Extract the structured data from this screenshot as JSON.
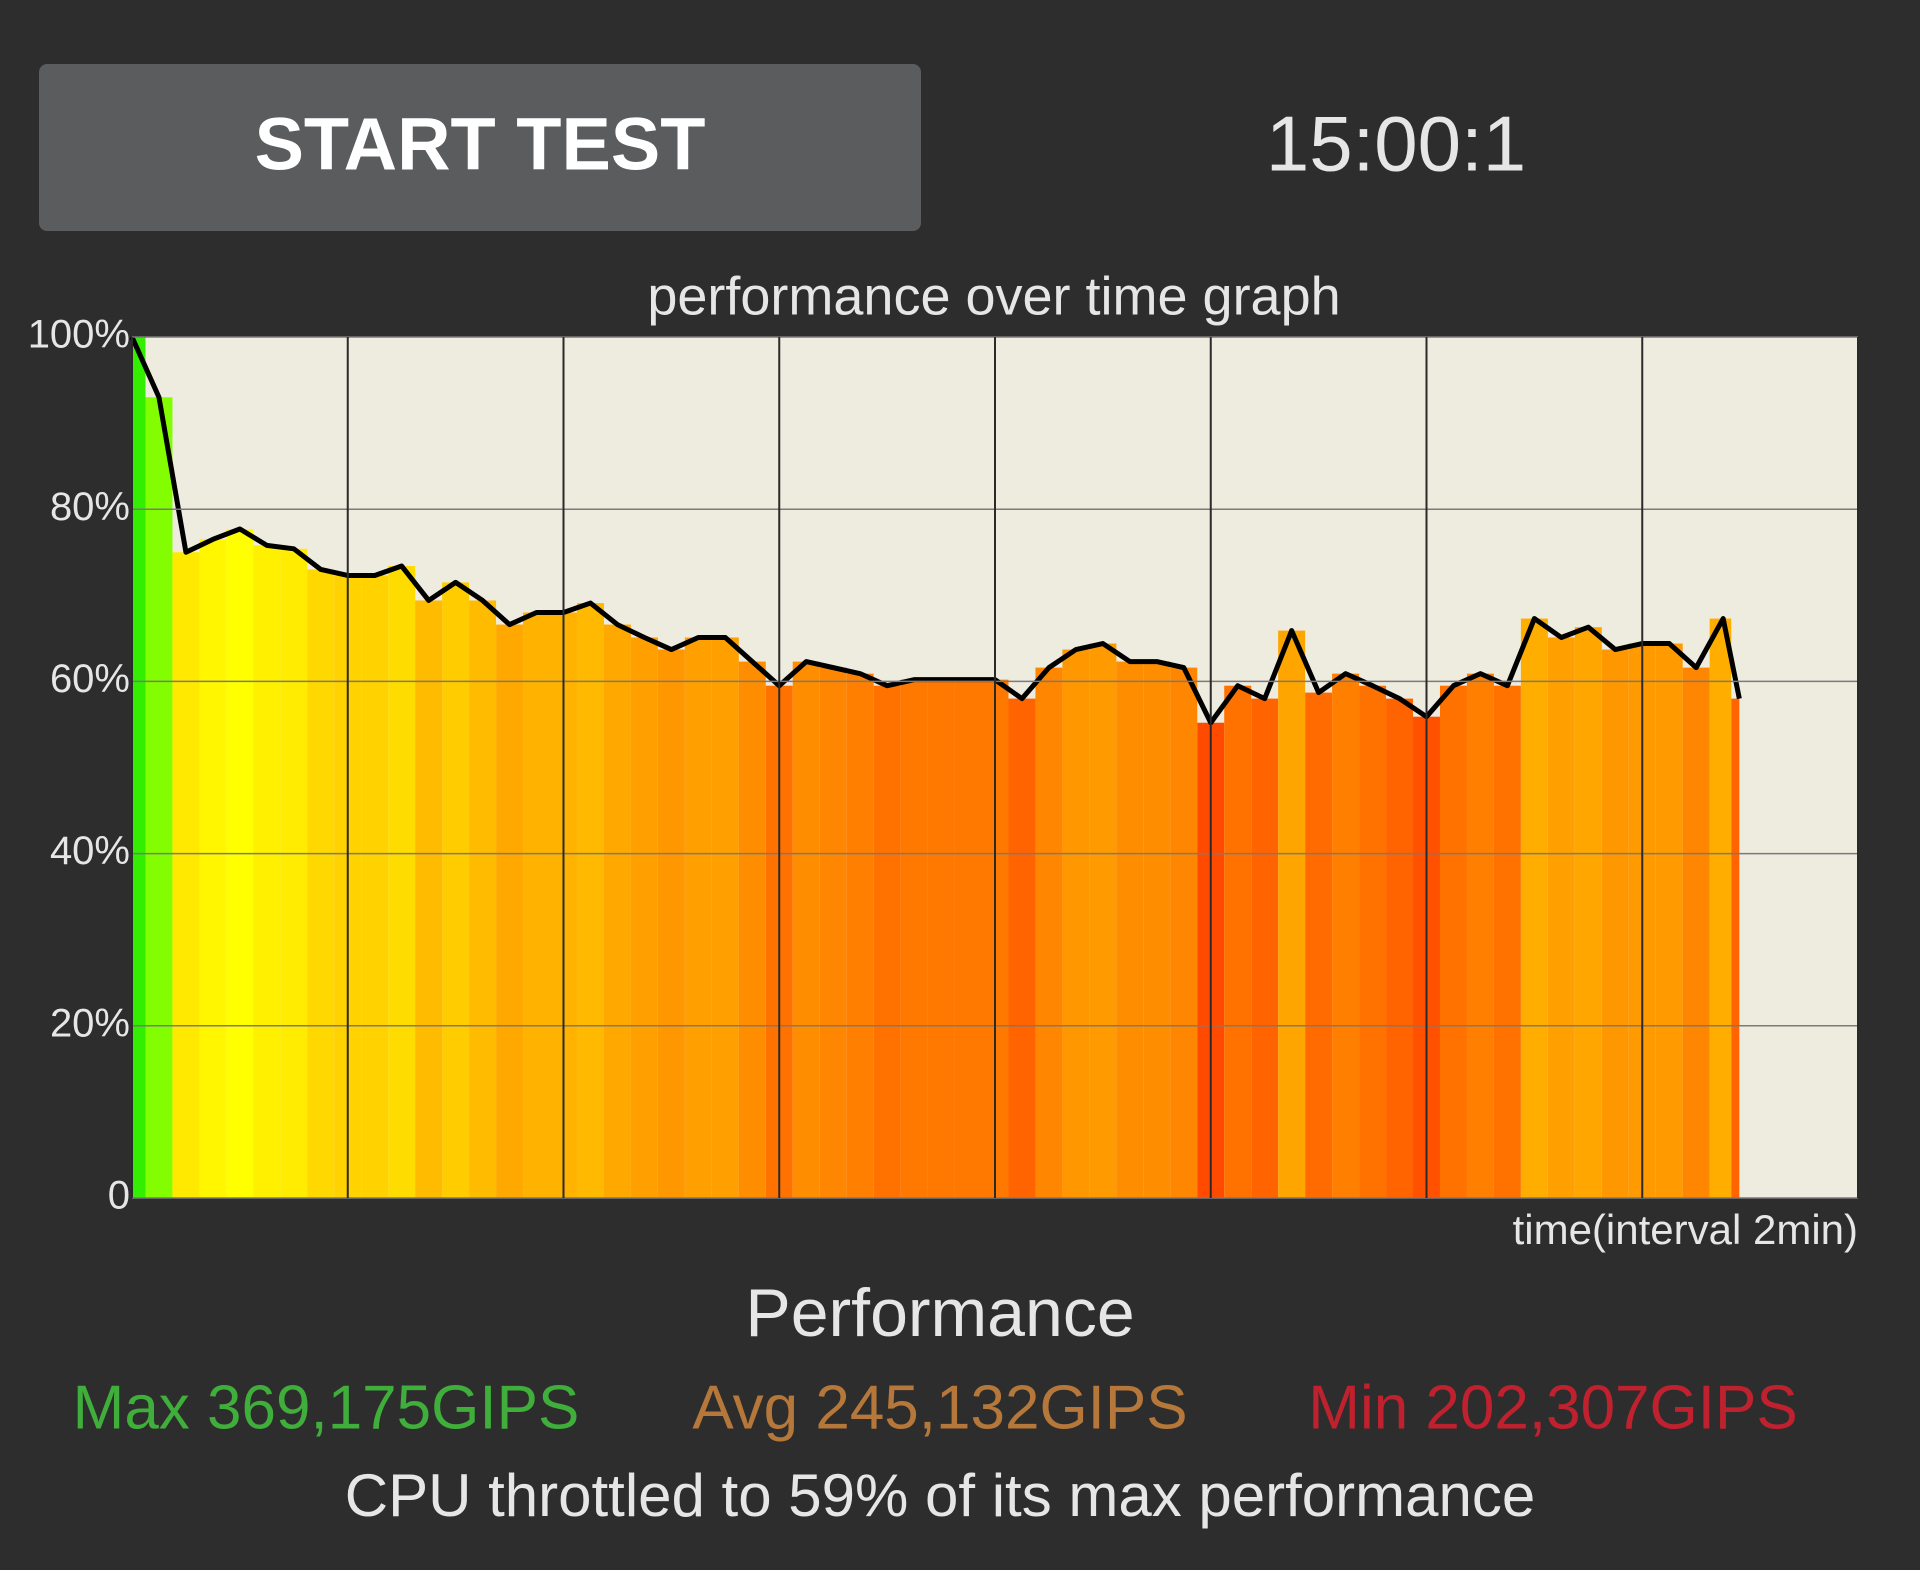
{
  "header": {
    "button": "START TEST",
    "timer": "15:00:1"
  },
  "chart_data": {
    "type": "area-bars",
    "title": "performance over time graph",
    "x_label": "time(interval 2min)",
    "x": [
      0,
      0.25,
      0.5,
      0.75,
      1,
      1.25,
      1.5,
      1.75,
      2,
      2.25,
      2.5,
      2.75,
      3,
      3.25,
      3.5,
      3.75,
      4,
      4.25,
      4.5,
      4.75,
      5,
      5.25,
      5.5,
      5.75,
      6,
      6.25,
      6.5,
      6.75,
      7,
      7.25,
      7.5,
      7.75,
      8,
      8.25,
      8.5,
      8.75,
      9,
      9.25,
      9.5,
      9.75,
      10,
      10.25,
      10.5,
      10.75,
      11,
      11.25,
      11.5,
      11.75,
      12,
      12.25,
      12.5,
      12.75,
      13,
      13.25,
      13.5,
      13.75,
      14,
      14.25,
      14.5,
      14.75,
      14.9
    ],
    "values": [
      100,
      93,
      75,
      76.5,
      77.7,
      75.8,
      75.4,
      73,
      72.3,
      72.3,
      73.4,
      69.4,
      71.5,
      69.4,
      66.6,
      68,
      68,
      69.1,
      66.6,
      65.1,
      63.7,
      65.1,
      65.1,
      62.3,
      59.5,
      62.3,
      61.6,
      60.9,
      59.5,
      60.2,
      60.2,
      60.2,
      60.2,
      58,
      61.6,
      63.7,
      64.4,
      62.3,
      62.3,
      61.6,
      55.2,
      59.5,
      58,
      65.9,
      58.7,
      60.9,
      59.5,
      58,
      55.9,
      59.5,
      60.9,
      59.5,
      67.3,
      65.1,
      66.3,
      63.7,
      64.4,
      64.4,
      61.6,
      67.3,
      58
    ],
    "line_color": "#000000",
    "colormap": [
      "#ff4a00",
      "#ff9000",
      "#ffc000",
      "#ffff00",
      "#ffff00",
      "#88ff00",
      "#33ee00"
    ],
    "xlim": [
      0,
      16
    ],
    "xticks": [
      0,
      2,
      4,
      6,
      8,
      10,
      12,
      14,
      16
    ],
    "ylim": [
      0,
      100
    ],
    "yticks": [
      0,
      {
        "value": 20,
        "label": "20%"
      },
      {
        "value": 40,
        "label": "40%"
      },
      {
        "value": 60,
        "label": "60%"
      },
      {
        "value": 80,
        "label": "80%"
      },
      {
        "value": 100,
        "label": "100%"
      }
    ],
    "grid": true
  },
  "stats": {
    "heading": "Performance",
    "max": "Max 369,175GIPS",
    "avg": "Avg 245,132GIPS",
    "min": "Min 202,307GIPS",
    "summary": "CPU throttled to 59% of its max performance"
  }
}
